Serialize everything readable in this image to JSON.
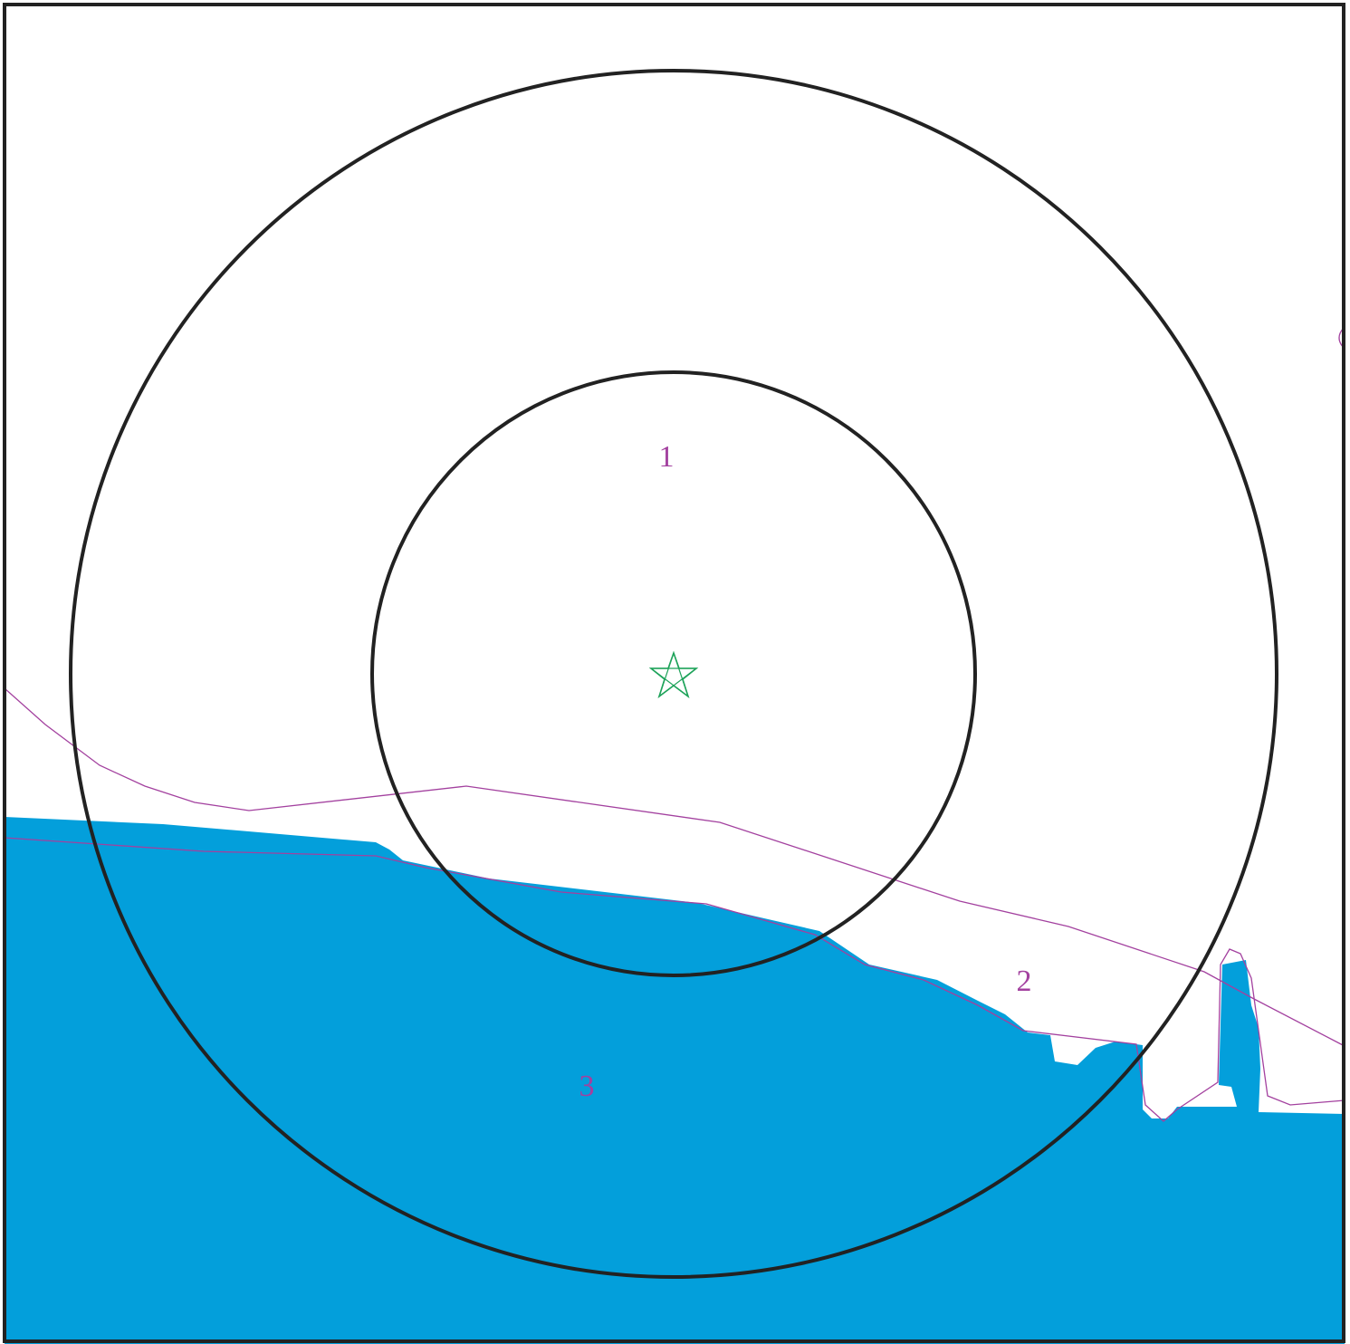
{
  "map": {
    "colors": {
      "water": "#039fdb",
      "ring": "#222222",
      "boundary_line": "#a3419f",
      "label": "#a3419f",
      "center_marker": "#1ea35a",
      "frame": "#222222"
    },
    "center_marker_icon": "star-outline-icon",
    "zone_labels": {
      "inner": "1",
      "outer": "2",
      "water": "3"
    }
  }
}
